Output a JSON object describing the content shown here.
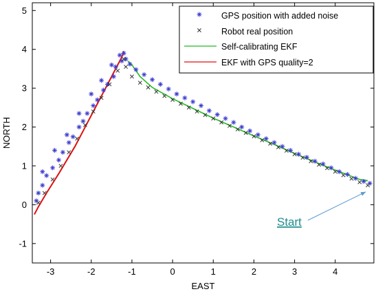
{
  "chart_data": {
    "type": "scatter",
    "xlabel": "EAST",
    "ylabel": "NORTH",
    "xlim": [
      -3.45,
      4.95
    ],
    "ylim": [
      -1.5,
      5.2
    ],
    "x_ticks": [
      -3,
      -2,
      -1,
      0,
      1,
      2,
      3,
      4
    ],
    "y_ticks": [
      -1,
      0,
      1,
      2,
      3,
      4,
      5
    ],
    "grid": false,
    "legend_position": "top-right",
    "series": [
      {
        "name": "GPS position with added noise",
        "marker": "star",
        "color": "#3a3ad0",
        "points": [
          [
            4.85,
            0.55
          ],
          [
            4.7,
            0.6
          ],
          [
            4.5,
            0.68
          ],
          [
            4.3,
            0.78
          ],
          [
            4.1,
            0.85
          ],
          [
            3.9,
            0.95
          ],
          [
            3.7,
            1.05
          ],
          [
            3.5,
            1.12
          ],
          [
            3.3,
            1.22
          ],
          [
            3.1,
            1.3
          ],
          [
            2.9,
            1.4
          ],
          [
            2.7,
            1.5
          ],
          [
            2.5,
            1.6
          ],
          [
            2.3,
            1.7
          ],
          [
            2.1,
            1.8
          ],
          [
            1.9,
            1.9
          ],
          [
            1.7,
            2.0
          ],
          [
            1.5,
            2.12
          ],
          [
            1.3,
            2.22
          ],
          [
            1.1,
            2.32
          ],
          [
            0.9,
            2.42
          ],
          [
            0.7,
            2.55
          ],
          [
            0.5,
            2.65
          ],
          [
            0.3,
            2.75
          ],
          [
            0.1,
            2.85
          ],
          [
            -0.1,
            2.98
          ],
          [
            -0.3,
            3.1
          ],
          [
            -0.5,
            3.22
          ],
          [
            -0.7,
            3.35
          ],
          [
            -0.9,
            3.48
          ],
          [
            -1.05,
            3.62
          ],
          [
            -1.15,
            3.75
          ],
          [
            -1.2,
            3.9
          ],
          [
            -1.3,
            3.85
          ],
          [
            -1.25,
            3.7
          ],
          [
            -1.4,
            3.55
          ],
          [
            -1.45,
            3.3
          ],
          [
            -1.6,
            3.1
          ],
          [
            -1.7,
            2.95
          ],
          [
            -1.85,
            2.7
          ],
          [
            -1.95,
            2.55
          ],
          [
            -2.1,
            2.35
          ],
          [
            -2.2,
            2.15
          ],
          [
            -2.3,
            2.0
          ],
          [
            -2.45,
            1.75
          ],
          [
            -2.55,
            1.6
          ],
          [
            -2.7,
            1.35
          ],
          [
            -2.8,
            1.15
          ],
          [
            -2.95,
            0.95
          ],
          [
            -3.1,
            0.75
          ],
          [
            -3.2,
            0.5
          ],
          [
            -3.3,
            0.3
          ],
          [
            -3.35,
            0.1
          ],
          [
            -3.2,
            0.85
          ],
          [
            -2.9,
            1.4
          ],
          [
            -2.6,
            1.8
          ],
          [
            -2.3,
            2.35
          ],
          [
            -2.0,
            2.85
          ],
          [
            -1.75,
            3.2
          ],
          [
            -1.5,
            3.6
          ]
        ]
      },
      {
        "name": "Robot real position",
        "marker": "cross",
        "color": "#333333",
        "points": [
          [
            4.8,
            0.5
          ],
          [
            4.6,
            0.58
          ],
          [
            4.4,
            0.67
          ],
          [
            4.2,
            0.76
          ],
          [
            4.0,
            0.85
          ],
          [
            3.8,
            0.94
          ],
          [
            3.6,
            1.03
          ],
          [
            3.4,
            1.12
          ],
          [
            3.2,
            1.21
          ],
          [
            3.0,
            1.3
          ],
          [
            2.8,
            1.39
          ],
          [
            2.6,
            1.48
          ],
          [
            2.4,
            1.57
          ],
          [
            2.2,
            1.66
          ],
          [
            2.0,
            1.76
          ],
          [
            1.8,
            1.85
          ],
          [
            1.6,
            1.94
          ],
          [
            1.4,
            2.03
          ],
          [
            1.2,
            2.12
          ],
          [
            1.0,
            2.22
          ],
          [
            0.8,
            2.31
          ],
          [
            0.6,
            2.4
          ],
          [
            0.4,
            2.5
          ],
          [
            0.2,
            2.6
          ],
          [
            0.0,
            2.7
          ],
          [
            -0.2,
            2.8
          ],
          [
            -0.4,
            2.91
          ],
          [
            -0.6,
            3.02
          ],
          [
            -0.8,
            3.14
          ],
          [
            -1.0,
            3.3
          ],
          [
            -1.15,
            3.55
          ],
          [
            -1.2,
            3.75
          ],
          [
            -1.35,
            3.45
          ],
          [
            -1.55,
            3.1
          ],
          [
            -1.75,
            2.75
          ],
          [
            -1.95,
            2.4
          ],
          [
            -2.15,
            2.05
          ],
          [
            -2.35,
            1.7
          ],
          [
            -2.55,
            1.35
          ],
          [
            -2.75,
            1.0
          ],
          [
            -2.95,
            0.65
          ],
          [
            -3.15,
            0.3
          ],
          [
            -3.3,
            0.05
          ]
        ]
      },
      {
        "name": "Self-calibrating EKF",
        "color": "#22bb22",
        "points": [
          [
            4.8,
            0.62
          ],
          [
            4.6,
            0.65
          ],
          [
            4.3,
            0.77
          ],
          [
            3.9,
            0.93
          ],
          [
            3.5,
            1.1
          ],
          [
            3.0,
            1.32
          ],
          [
            2.5,
            1.55
          ],
          [
            2.0,
            1.77
          ],
          [
            1.5,
            2.0
          ],
          [
            1.0,
            2.23
          ],
          [
            0.5,
            2.48
          ],
          [
            0.0,
            2.73
          ],
          [
            -0.5,
            3.02
          ],
          [
            -0.8,
            3.3
          ],
          [
            -1.0,
            3.6
          ],
          [
            -1.1,
            3.7
          ]
        ]
      },
      {
        "name": "EKF with GPS quality=2",
        "color": "#dd1111",
        "points": [
          [
            -1.2,
            3.95
          ],
          [
            -1.25,
            3.8
          ],
          [
            -1.3,
            3.7
          ],
          [
            -1.6,
            3.1
          ],
          [
            -2.0,
            2.3
          ],
          [
            -2.4,
            1.5
          ],
          [
            -2.8,
            0.8
          ],
          [
            -3.1,
            0.3
          ],
          [
            -3.3,
            -0.05
          ],
          [
            -3.4,
            -0.25
          ]
        ]
      }
    ],
    "annotation": {
      "text": "Start",
      "arrow_to": [
        4.75,
        0.33
      ]
    }
  }
}
